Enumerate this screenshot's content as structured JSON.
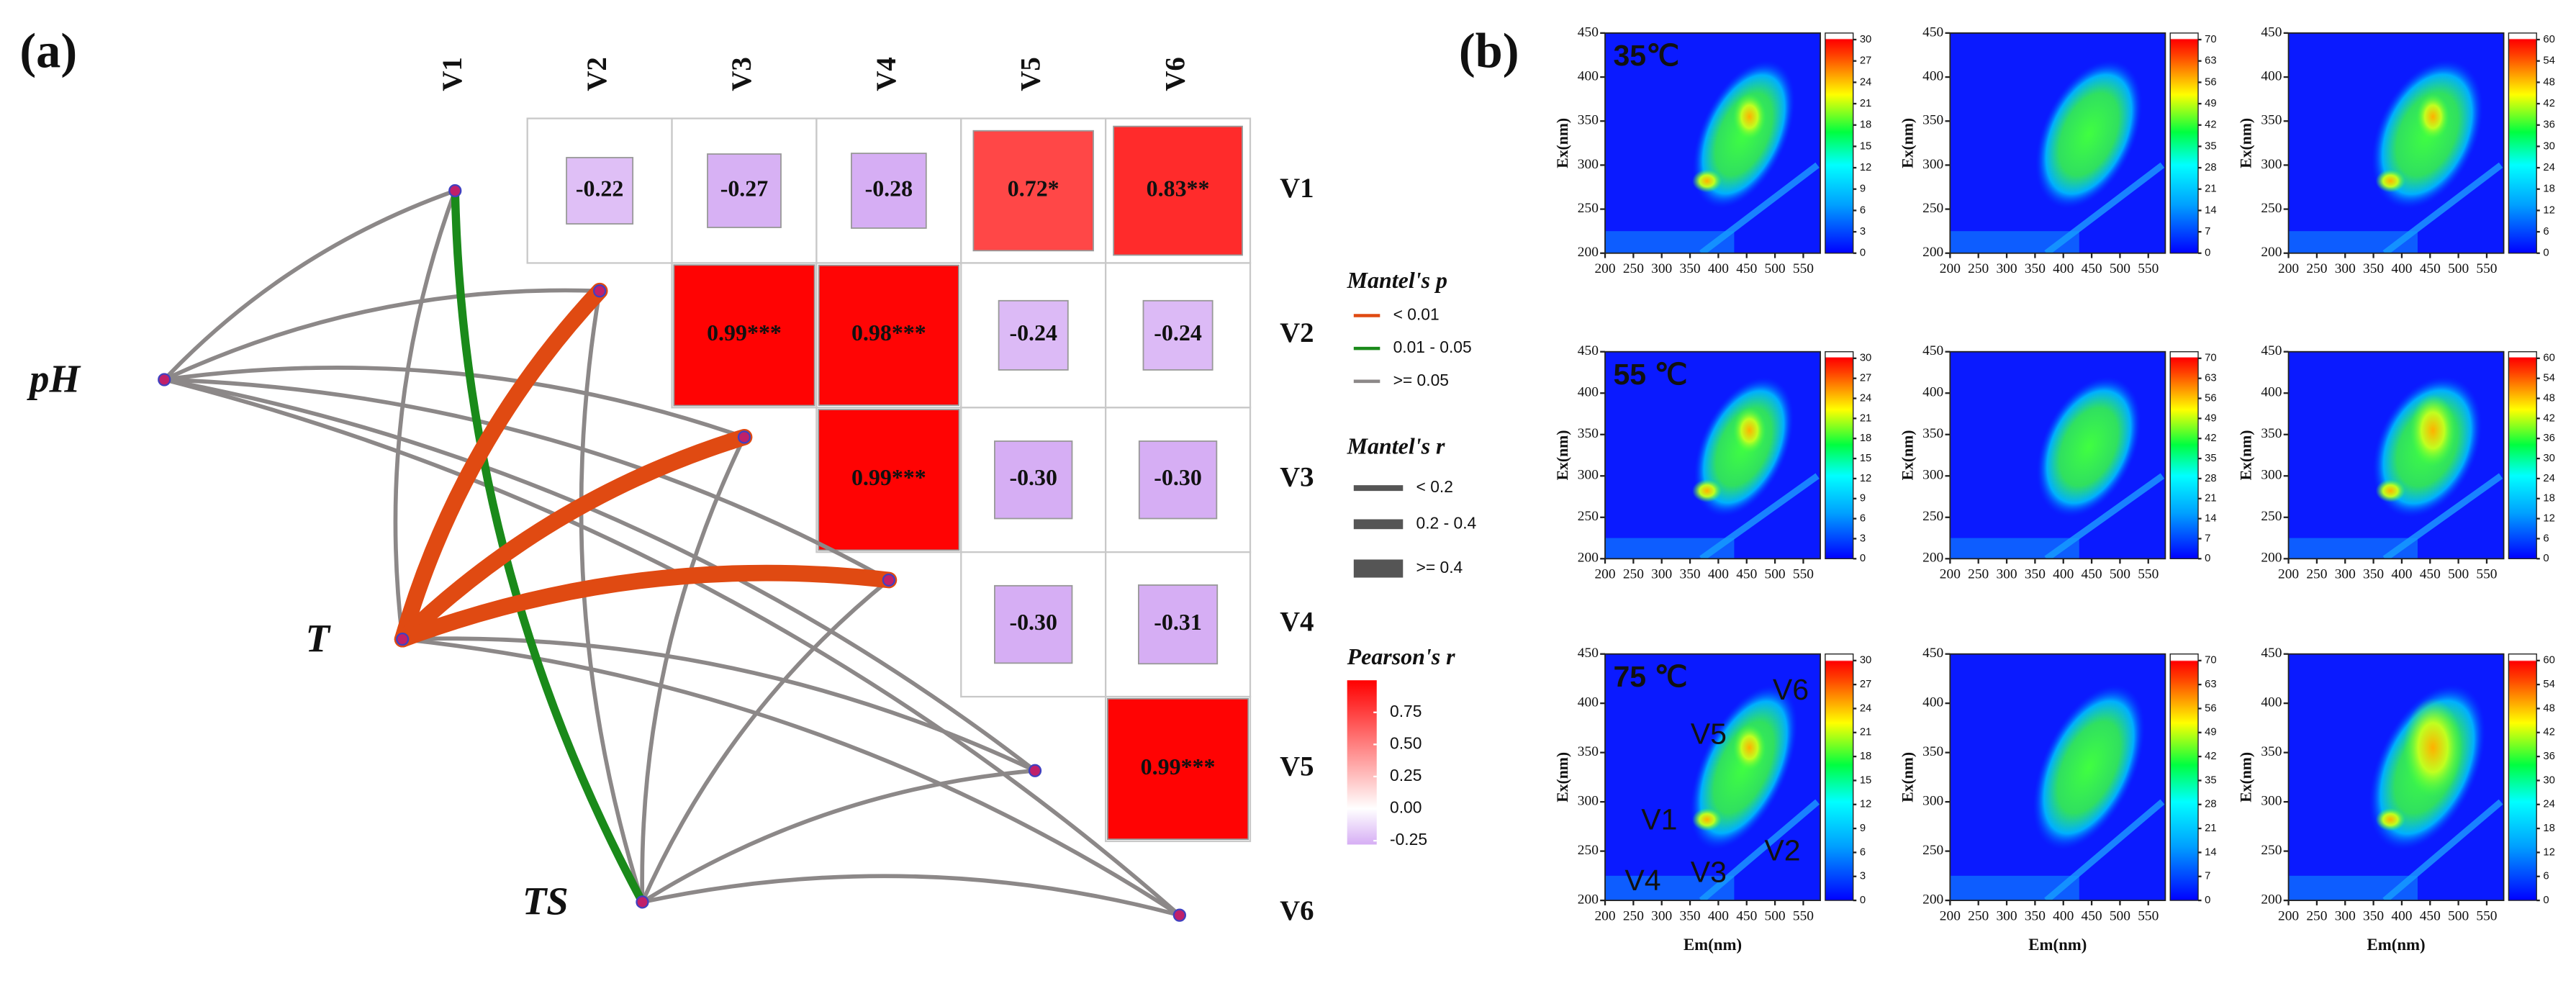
{
  "chart_data": [
    {
      "type": "mantel_heatmap",
      "panel_label": "(a)",
      "variables": [
        "V1",
        "V2",
        "V3",
        "V4",
        "V5",
        "V6"
      ],
      "env_variables": [
        "pH",
        "T",
        "TS"
      ],
      "values": [
        [
          null,
          -0.22,
          -0.27,
          -0.28,
          0.72,
          0.83
        ],
        [
          null,
          null,
          0.99,
          0.98,
          -0.24,
          -0.24
        ],
        [
          null,
          null,
          null,
          0.99,
          -0.3,
          -0.3
        ],
        [
          null,
          null,
          null,
          null,
          -0.3,
          -0.31
        ],
        [
          null,
          null,
          null,
          null,
          null,
          0.99
        ],
        [
          null,
          null,
          null,
          null,
          null,
          null
        ]
      ],
      "value_labels": [
        [
          null,
          "-0.22",
          "-0.27",
          "-0.28",
          "0.72*",
          "0.83**"
        ],
        [
          null,
          null,
          "0.99***",
          "0.98***",
          "-0.24",
          "-0.24"
        ],
        [
          null,
          null,
          null,
          "0.99***",
          "-0.30",
          "-0.30"
        ],
        [
          null,
          null,
          null,
          null,
          "-0.30",
          "-0.31"
        ],
        [
          null,
          null,
          null,
          null,
          null,
          "0.99***"
        ],
        [
          null,
          null,
          null,
          null,
          null,
          null
        ]
      ],
      "colors": {
        "negative": "#d6aef4",
        "zero": "#ffffff",
        "positive": "#ff0000"
      },
      "clim": [
        -0.28,
        1
      ],
      "colorbar_title": "Pearson's r",
      "colorbar_ticks": [
        0.75,
        {
          "value": 0.5,
          "label": "0.50"
        },
        0.25,
        {
          "value": 0,
          "label": "0.00"
        },
        -0.25
      ],
      "mantel_p_title": "Mantel's p",
      "mantel_p_classes": [
        {
          "label": "< 0.01",
          "color": "#e04a12"
        },
        {
          "label": "0.01 - 0.05",
          "color": "#1a8a1a"
        },
        {
          "label": ">= 0.05",
          "color": "#8c8888"
        }
      ],
      "mantel_r_title": "Mantel's r",
      "mantel_r_classes": [
        {
          "label": "< 0.2"
        },
        {
          "label": "0.2 - 0.4"
        },
        {
          "label": ">= 0.4"
        }
      ],
      "links": [
        {
          "env": 0,
          "var": 0,
          "p_class": 2,
          "r_class": 0
        },
        {
          "env": 0,
          "var": 1,
          "p_class": 2,
          "r_class": 0
        },
        {
          "env": 0,
          "var": 2,
          "p_class": 2,
          "r_class": 0
        },
        {
          "env": 0,
          "var": 3,
          "p_class": 2,
          "r_class": 0
        },
        {
          "env": 0,
          "var": 4,
          "p_class": 2,
          "r_class": 0
        },
        {
          "env": 0,
          "var": 5,
          "p_class": 2,
          "r_class": 0
        },
        {
          "env": 1,
          "var": 0,
          "p_class": 2,
          "r_class": 0
        },
        {
          "env": 1,
          "var": 4,
          "p_class": 2,
          "r_class": 0
        },
        {
          "env": 1,
          "var": 5,
          "p_class": 2,
          "r_class": 0
        },
        {
          "env": 2,
          "var": 1,
          "p_class": 2,
          "r_class": 0
        },
        {
          "env": 2,
          "var": 2,
          "p_class": 2,
          "r_class": 0
        },
        {
          "env": 2,
          "var": 3,
          "p_class": 2,
          "r_class": 0
        },
        {
          "env": 2,
          "var": 4,
          "p_class": 2,
          "r_class": 0
        },
        {
          "env": 2,
          "var": 5,
          "p_class": 2,
          "r_class": 0
        },
        {
          "env": 2,
          "var": 0,
          "p_class": 1,
          "r_class": 1
        },
        {
          "env": 1,
          "var": 1,
          "p_class": 0,
          "r_class": 2
        },
        {
          "env": 1,
          "var": 2,
          "p_class": 0,
          "r_class": 2
        },
        {
          "env": 1,
          "var": 3,
          "p_class": 0,
          "r_class": 2
        }
      ]
    },
    {
      "type": "eem_grid",
      "panel_label": "(b)",
      "row_labels": [
        "35℃",
        "55 ℃",
        "75 ℃"
      ],
      "xlabel": "Em(nm)",
      "ylabel": "Ex(nm)",
      "xlim": [
        200,
        580
      ],
      "ylim": [
        200,
        450
      ],
      "xticks": [
        200,
        250,
        300,
        350,
        400,
        450,
        500,
        550
      ],
      "yticks": [
        200,
        250,
        300,
        350,
        400,
        450
      ],
      "colorbar_ticks": [
        [
          0,
          3,
          6,
          9,
          12,
          15,
          18,
          21,
          24,
          27,
          30
        ],
        [
          0,
          7,
          14,
          21,
          28,
          35,
          42,
          49,
          56,
          63,
          70
        ],
        [
          0,
          6,
          12,
          18,
          24,
          30,
          36,
          42,
          48,
          54,
          60
        ]
      ],
      "peak_labels": [
        "V1",
        "V2",
        "V3",
        "V4",
        "V5",
        "V6"
      ]
    }
  ]
}
